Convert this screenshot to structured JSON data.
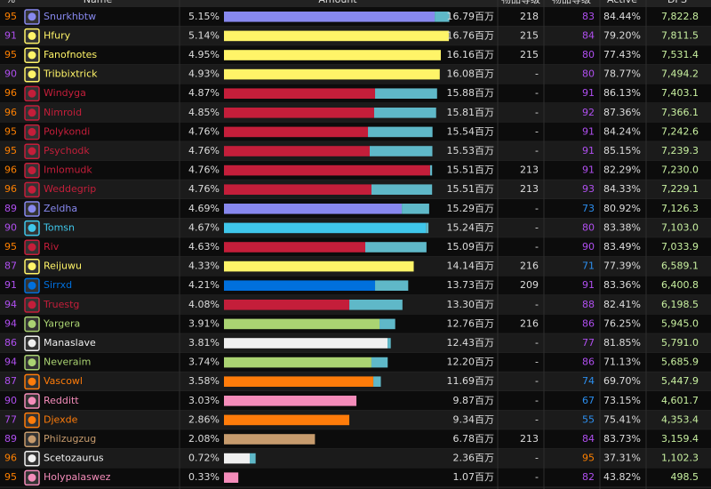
{
  "table": {
    "header": [
      "%",
      "Name",
      "Amount",
      "物品等级",
      "物品等级",
      "Active",
      "DPS"
    ],
    "classes": {
      "warlock": "#8788ee",
      "rogue": "#fff468",
      "dk": "#c41e3a",
      "mage": "#3fc7eb",
      "shaman": "#0070dd",
      "hunter": "#aad372",
      "priest": "#f0f0f0",
      "druid": "#ff7c0a",
      "paladin": "#f48cba",
      "warrior": "#c69b6d"
    },
    "rows": [
      {
        "cells": [
          "95",
          "Snurkhbtw",
          "5.15%",
          "16.79百万",
          "218",
          "83",
          "84.44%",
          "7,822.8"
        ],
        "class": "warlock",
        "bar": [
          15.7,
          1.09
        ]
      },
      {
        "cells": [
          "91",
          "Hfury",
          "5.14%",
          "16.76百万",
          "215",
          "84",
          "79.20%",
          "7,811.5"
        ],
        "class": "rogue",
        "bar": [
          16.76,
          0
        ]
      },
      {
        "cells": [
          "95",
          "Fanofnotes",
          "4.95%",
          "16.16百万",
          "215",
          "80",
          "77.43%",
          "7,531.4"
        ],
        "class": "rogue",
        "bar": [
          16.16,
          0
        ]
      },
      {
        "cells": [
          "90",
          "Tribbixtrick",
          "4.93%",
          "16.08百万",
          "-",
          "80",
          "78.77%",
          "7,494.2"
        ],
        "class": "rogue",
        "bar": [
          16.08,
          0
        ]
      },
      {
        "cells": [
          "96",
          "Windyga",
          "4.87%",
          "15.88百万",
          "-",
          "91",
          "86.13%",
          "7,403.1"
        ],
        "class": "dk",
        "bar": [
          11.26,
          4.62
        ]
      },
      {
        "cells": [
          "96",
          "Nimroid",
          "4.85%",
          "15.81百万",
          "-",
          "92",
          "87.36%",
          "7,366.1"
        ],
        "class": "dk",
        "bar": [
          11.19,
          4.62
        ]
      },
      {
        "cells": [
          "95",
          "Polykondi",
          "4.76%",
          "15.54百万",
          "-",
          "91",
          "84.24%",
          "7,242.6"
        ],
        "class": "dk",
        "bar": [
          10.73,
          4.81
        ]
      },
      {
        "cells": [
          "95",
          "Psychodk",
          "4.76%",
          "15.53百万",
          "-",
          "91",
          "85.15%",
          "7,239.3"
        ],
        "class": "dk",
        "bar": [
          10.86,
          4.67
        ]
      },
      {
        "cells": [
          "96",
          "Imlomudk",
          "4.76%",
          "15.51百万",
          "213",
          "91",
          "82.29%",
          "7,230.0"
        ],
        "class": "dk",
        "bar": [
          15.36,
          0.15
        ]
      },
      {
        "cells": [
          "96",
          "Weddegrip",
          "4.76%",
          "15.51百万",
          "213",
          "93",
          "84.33%",
          "7,229.1"
        ],
        "class": "dk",
        "bar": [
          10.99,
          4.52
        ]
      },
      {
        "cells": [
          "89",
          "Zeldha",
          "4.69%",
          "15.29百万",
          "-",
          "73",
          "80.92%",
          "7,126.3"
        ],
        "class": "warlock",
        "bar": [
          13.25,
          2.04
        ]
      },
      {
        "cells": [
          "90",
          "Tomsn",
          "4.67%",
          "15.24百万",
          "-",
          "80",
          "83.38%",
          "7,103.0"
        ],
        "class": "mage",
        "bar": [
          15.04,
          0.2
        ]
      },
      {
        "cells": [
          "95",
          "Riv",
          "4.63%",
          "15.09百万",
          "-",
          "90",
          "83.49%",
          "7,033.9"
        ],
        "class": "dk",
        "bar": [
          10.53,
          4.56
        ]
      },
      {
        "cells": [
          "87",
          "Reijuwu",
          "4.33%",
          "14.14百万",
          "216",
          "71",
          "77.39%",
          "6,589.1"
        ],
        "class": "rogue",
        "bar": [
          14.14,
          0
        ]
      },
      {
        "cells": [
          "91",
          "Sirrxd",
          "4.21%",
          "13.73百万",
          "209",
          "91",
          "83.36%",
          "6,400.8"
        ],
        "class": "shaman",
        "bar": [
          11.26,
          2.47
        ]
      },
      {
        "cells": [
          "94",
          "Truestg",
          "4.08%",
          "13.30百万",
          "-",
          "88",
          "82.41%",
          "6,198.5"
        ],
        "class": "dk",
        "bar": [
          9.34,
          3.96
        ]
      },
      {
        "cells": [
          "94",
          "Yargera",
          "3.91%",
          "12.76百万",
          "216",
          "86",
          "76.25%",
          "5,945.0"
        ],
        "class": "hunter",
        "bar": [
          11.59,
          1.17
        ]
      },
      {
        "cells": [
          "86",
          "Manaslave",
          "3.81%",
          "12.43百万",
          "-",
          "77",
          "81.85%",
          "5,791.0"
        ],
        "class": "priest",
        "bar": [
          12.19,
          0.24
        ]
      },
      {
        "cells": [
          "94",
          "Neveraim",
          "3.74%",
          "12.20百万",
          "-",
          "86",
          "71.13%",
          "5,685.9"
        ],
        "class": "hunter",
        "bar": [
          10.99,
          1.21
        ]
      },
      {
        "cells": [
          "87",
          "Vascowl",
          "3.58%",
          "11.69百万",
          "-",
          "74",
          "69.70%",
          "5,447.9"
        ],
        "class": "druid",
        "bar": [
          11.13,
          0.56
        ]
      },
      {
        "cells": [
          "90",
          "Redditt",
          "3.03%",
          "9.87百万",
          "-",
          "67",
          "73.15%",
          "4,601.7"
        ],
        "class": "paladin",
        "bar": [
          9.87,
          0
        ]
      },
      {
        "cells": [
          "77",
          "Djexde",
          "2.86%",
          "9.34百万",
          "-",
          "55",
          "75.41%",
          "4,353.4"
        ],
        "class": "druid",
        "bar": [
          9.34,
          0
        ]
      },
      {
        "cells": [
          "89",
          "Philzugzug",
          "2.08%",
          "6.78百万",
          "213",
          "84",
          "83.73%",
          "3,159.4"
        ],
        "class": "warrior",
        "bar": [
          6.78,
          0
        ]
      },
      {
        "cells": [
          "96",
          "Scetozaurus",
          "0.72%",
          "2.36百万",
          "-",
          "95",
          "37.31%",
          "1,102.3"
        ],
        "class": "priest",
        "bar": [
          1.92,
          0.44
        ]
      },
      {
        "cells": [
          "95",
          "Holypalaswez",
          "0.33%",
          "1.07百万",
          "-",
          "82",
          "43.82%",
          "498.5"
        ],
        "class": "paladin",
        "bar": [
          1.07,
          0
        ]
      }
    ]
  }
}
